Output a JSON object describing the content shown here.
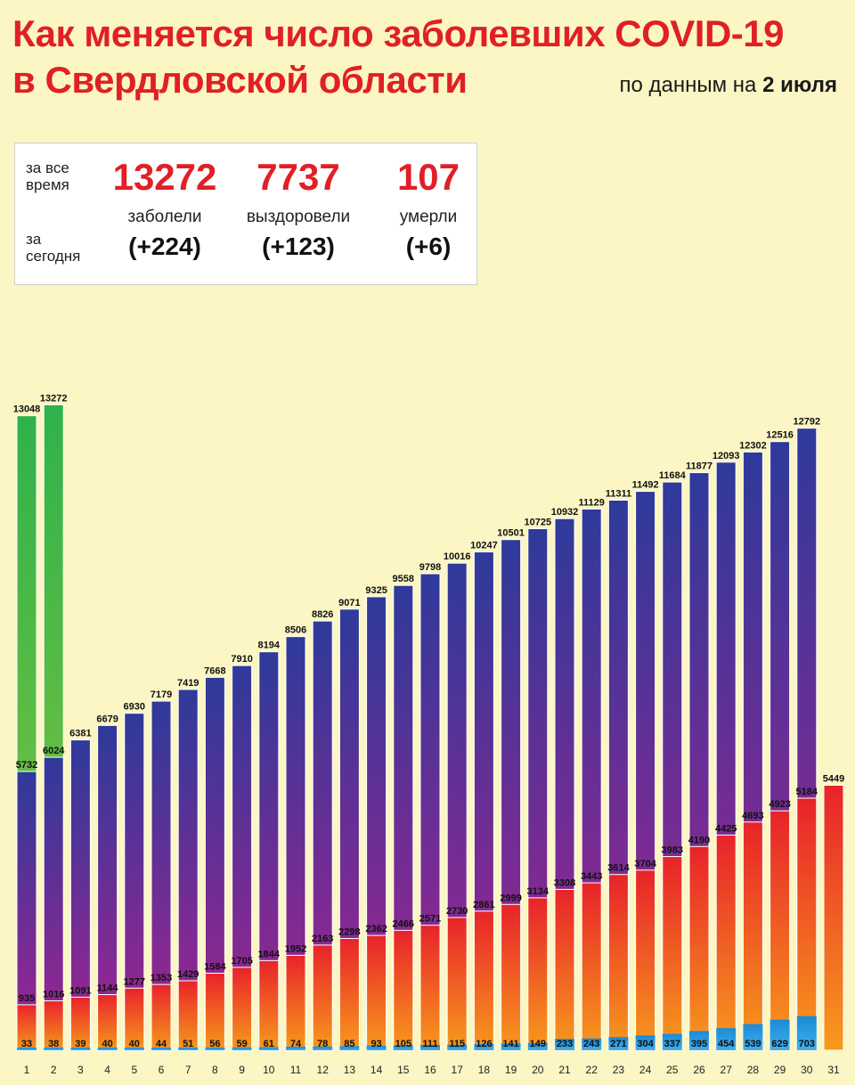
{
  "title_line1": "Как  меняется число  заболевших COVID-19",
  "title_line2": "в Свердловской области",
  "subtitle_prefix": "по данным на",
  "subtitle_date": "2 июля",
  "stats": {
    "label_total": [
      "за все",
      "время"
    ],
    "label_today": [
      "за",
      "сегодня"
    ],
    "items": [
      {
        "value": "13272",
        "caption": "заболели",
        "delta": "(+224)"
      },
      {
        "value": "7737",
        "caption": "выздоровели",
        "delta": "(+123)"
      },
      {
        "value": "107",
        "caption": "умерли",
        "delta": "(+6)"
      }
    ]
  },
  "colors": {
    "title_red": "#e11f26",
    "total_top": "#2e3a9a",
    "total_bottom": "#a3238f",
    "recovered_top": "#e8232a",
    "recovered_bottom": "#f79a1c",
    "deaths": "#1c8ad6",
    "green_highlight": "#2fb24a"
  },
  "chart_data": {
    "type": "bar",
    "categories": [
      "1",
      "2",
      "3",
      "4",
      "5",
      "6",
      "7",
      "8",
      "9",
      "10",
      "11",
      "12",
      "13",
      "14",
      "15",
      "16",
      "17",
      "18",
      "19",
      "20",
      "21",
      "22",
      "23",
      "24",
      "25",
      "26",
      "27",
      "28",
      "29",
      "30",
      "31"
    ],
    "series": [
      {
        "values": [
          5732,
          6024,
          6381,
          6679,
          6930,
          7179,
          7419,
          7668,
          7910,
          8194,
          8506,
          8826,
          9071,
          9325,
          9558,
          9798,
          10016,
          10247,
          10501,
          10725,
          10932,
          11129,
          11311,
          11492,
          11684,
          11877,
          12093,
          12302,
          12516,
          12792,
          null
        ]
      },
      {
        "values": [
          13048,
          13272,
          null,
          null,
          null,
          null,
          null,
          null,
          null,
          null,
          null,
          null,
          null,
          null,
          null,
          null,
          null,
          null,
          null,
          null,
          null,
          null,
          null,
          null,
          null,
          null,
          null,
          null,
          null,
          null,
          null
        ]
      },
      {
        "values": [
          935,
          1016,
          1091,
          1144,
          1277,
          1353,
          1429,
          1584,
          1705,
          1844,
          1952,
          2163,
          2298,
          2362,
          2466,
          2571,
          2730,
          2861,
          2999,
          3134,
          3308,
          3443,
          3614,
          3704,
          3983,
          4190,
          4425,
          4693,
          4923,
          5184,
          5449
        ]
      },
      {
        "values": [
          33,
          38,
          39,
          40,
          40,
          44,
          51,
          56,
          59,
          61,
          74,
          78,
          85,
          93,
          105,
          111,
          115,
          126,
          141,
          149,
          233,
          243,
          271,
          304,
          337,
          395,
          454,
          539,
          629,
          703,
          null
        ]
      }
    ],
    "ylim": [
      0,
      13500
    ]
  }
}
